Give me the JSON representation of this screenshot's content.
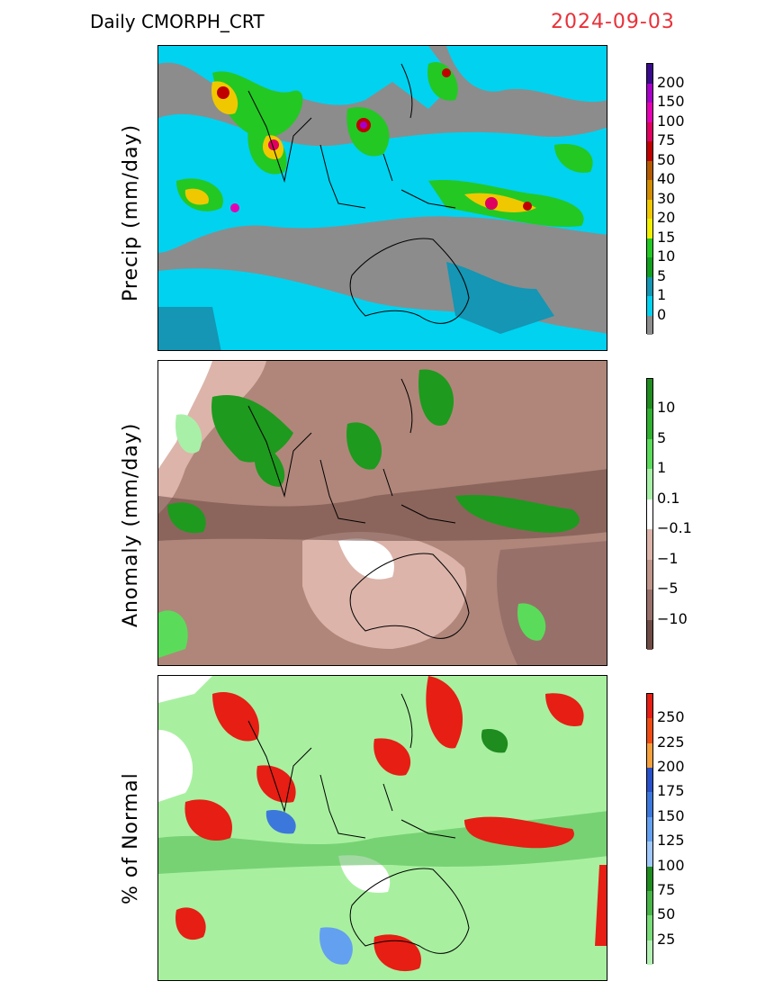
{
  "header": {
    "product": "Daily  CMORPH_CRT",
    "date": "2024-09-03"
  },
  "panels": [
    {
      "label": "Precip  (mm/day)",
      "ticks": [
        "200",
        "150",
        "100",
        "75",
        "50",
        "40",
        "30",
        "20",
        "15",
        "10",
        "5",
        "1",
        "0"
      ],
      "colors": [
        "#3a0a8c",
        "#a600c8",
        "#e600b4",
        "#e00060",
        "#c00000",
        "#b35a00",
        "#d28c00",
        "#f0c800",
        "#f0f000",
        "#23c823",
        "#10a01e",
        "#1496b4",
        "#00d2f0",
        "#8c8c8c"
      ],
      "map_bg": "#8c8c8c",
      "map_main": "#00d2f0"
    },
    {
      "label": "Anomaly  (mm/day)",
      "ticks": [
        "10",
        "5",
        "1",
        "0.1",
        "−0.1",
        "−1",
        "−5",
        "−10"
      ],
      "colors": [
        "#1e8c1e",
        "#2fb02f",
        "#5adc5a",
        "#a8f0a8",
        "#ffffff",
        "#dcb4aa",
        "#c0958a",
        "#98706a",
        "#6e4a44"
      ],
      "map_bg": "#b0867a",
      "map_main": "#1e9a1e"
    },
    {
      "label": "% of Normal",
      "ticks": [
        "250",
        "225",
        "200",
        "175",
        "150",
        "125",
        "100",
        "75",
        "50",
        "25"
      ],
      "colors": [
        "#e61e14",
        "#f04b14",
        "#f5a03c",
        "#2850c8",
        "#3c78dc",
        "#64a0f0",
        "#a0c8fa",
        "#1e8c1e",
        "#46b446",
        "#78dc78",
        "#b4f0b4"
      ],
      "map_bg": "#a8f0a0",
      "map_main": "#e61e14"
    }
  ]
}
